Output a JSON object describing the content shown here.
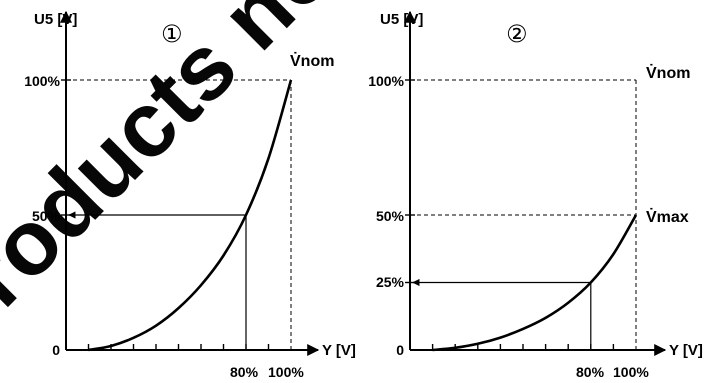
{
  "colors": {
    "ink": "#000000",
    "watermark": "#e5161c",
    "background": "#ffffff"
  },
  "watermark": "Products no longer available",
  "chart_data": [
    {
      "type": "line",
      "panel_marker": "①",
      "ylabel": "U5 [V]",
      "xlabel": "Y [V]",
      "y_ticks": [
        {
          "value": 100,
          "label": "100%"
        },
        {
          "value": 50,
          "label": "50%"
        },
        {
          "value": 0,
          "label": "0"
        }
      ],
      "x_tick_labels": {
        "value_80": "80%",
        "value_100": "100%"
      },
      "xlim": [
        0,
        100
      ],
      "ylim": [
        0,
        100
      ],
      "x_minor_tick_step": 10,
      "curve_label": "V̇nom",
      "series": [
        {
          "x": [
            10,
            20,
            30,
            40,
            50,
            60,
            70,
            80,
            90,
            100
          ],
          "y": [
            0,
            1.5,
            4.5,
            9,
            15.5,
            24,
            35,
            50,
            71,
            100
          ]
        }
      ],
      "reference_lines": [
        {
          "style": "solid-arrow",
          "from_x": 80,
          "at_y": 50
        },
        {
          "style": "dashed",
          "at_y": 100
        },
        {
          "style": "dashed",
          "at_x": 100
        }
      ]
    },
    {
      "type": "line",
      "panel_marker": "②",
      "ylabel": "U5 [V]",
      "xlabel": "Y [V]",
      "y_ticks": [
        {
          "value": 100,
          "label": "100%"
        },
        {
          "value": 50,
          "label": "50%"
        },
        {
          "value": 25,
          "label": "25%"
        },
        {
          "value": 0,
          "label": "0"
        }
      ],
      "x_tick_labels": {
        "value_80": "80%",
        "value_100": "100%"
      },
      "xlim": [
        0,
        100
      ],
      "ylim": [
        0,
        100
      ],
      "x_minor_tick_step": 10,
      "curve_labels": {
        "top": "V̇nom",
        "end": "V̇max"
      },
      "series": [
        {
          "x": [
            10,
            20,
            30,
            40,
            50,
            60,
            70,
            80,
            90,
            100
          ],
          "y": [
            0,
            0.8,
            2.3,
            4.6,
            7.8,
            11.9,
            17.5,
            25,
            35.5,
            50
          ]
        }
      ],
      "reference_lines": [
        {
          "style": "solid-arrow",
          "from_x": 80,
          "at_y": 25
        },
        {
          "style": "dashed",
          "at_y": 100
        },
        {
          "style": "dashed",
          "at_y": 50
        },
        {
          "style": "dashed",
          "at_x": 100
        }
      ]
    }
  ]
}
